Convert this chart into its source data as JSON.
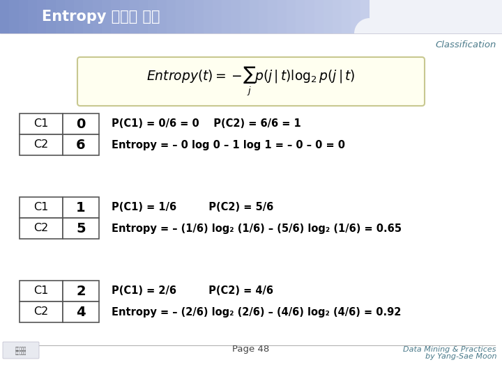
{
  "title": "Entropy 계산의 예제",
  "classification": "Classification",
  "page": "Page 48",
  "footer": "Data Mining & Practices\nby Yang-Sae Moon",
  "header_left_color1": "#7b8fc7",
  "header_left_color2": "#c5ceea",
  "header_right_color": "#edf0f8",
  "classification_color": "#4a7a8a",
  "body_bg_color": "#ffffff",
  "slide_bg_color": "#f2f4fa",
  "formula_box_color": "#fffff0",
  "formula_box_border": "#c8c890",
  "table_border_color": "#555555",
  "table_bg_color": "#ffffff",
  "examples": [
    {
      "c1": "0",
      "c2": "6",
      "prob_text": "P(C1) = 0/6 = 0    P(C2) = 6/6 = 1",
      "entropy_text": "Entropy = – 0 log 0 – 1 log 1 = – 0 – 0 = 0"
    },
    {
      "c1": "1",
      "c2": "5",
      "prob_text": "P(C1) = 1/6         P(C2) = 5/6",
      "entropy_text": "Entropy = – (1/6) log₂ (1/6) – (5/6) log₂ (1/6) = 0.65"
    },
    {
      "c1": "2",
      "c2": "4",
      "prob_text": "P(C1) = 2/6         P(C2) = 4/6",
      "entropy_text": "Entropy = – (2/6) log₂ (2/6) – (4/6) log₂ (4/6) = 0.92"
    }
  ]
}
